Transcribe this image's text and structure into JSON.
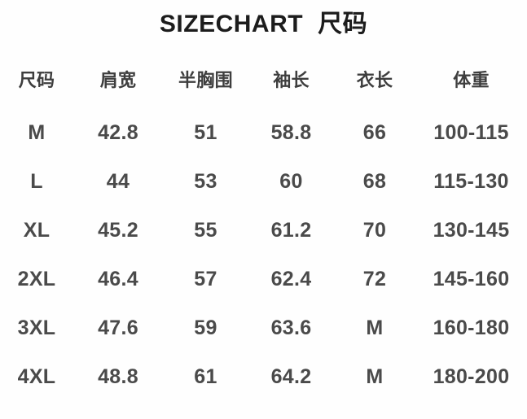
{
  "title": {
    "en": "SIZECHART",
    "zh": "尺码"
  },
  "chart_data": {
    "type": "table",
    "title": "SIZECHART 尺码",
    "columns": [
      "尺码",
      "肩宽",
      "半胸围",
      "袖长",
      "衣长",
      "体重"
    ],
    "rows": [
      [
        "M",
        "42.8",
        "51",
        "58.8",
        "66",
        "100-115"
      ],
      [
        "L",
        "44",
        "53",
        "60",
        "68",
        "115-130"
      ],
      [
        "XL",
        "45.2",
        "55",
        "61.2",
        "70",
        "130-145"
      ],
      [
        "2XL",
        "46.4",
        "57",
        "62.4",
        "72",
        "145-160"
      ],
      [
        "3XL",
        "47.6",
        "59",
        "63.6",
        "M",
        "160-180"
      ],
      [
        "4XL",
        "48.8",
        "61",
        "64.2",
        "M",
        "180-200"
      ]
    ]
  },
  "colors": {
    "background": "#fefefe",
    "title_text": "#1c1c1c",
    "header_text": "#3e3e3e",
    "cell_text": "#4a4a4a"
  }
}
